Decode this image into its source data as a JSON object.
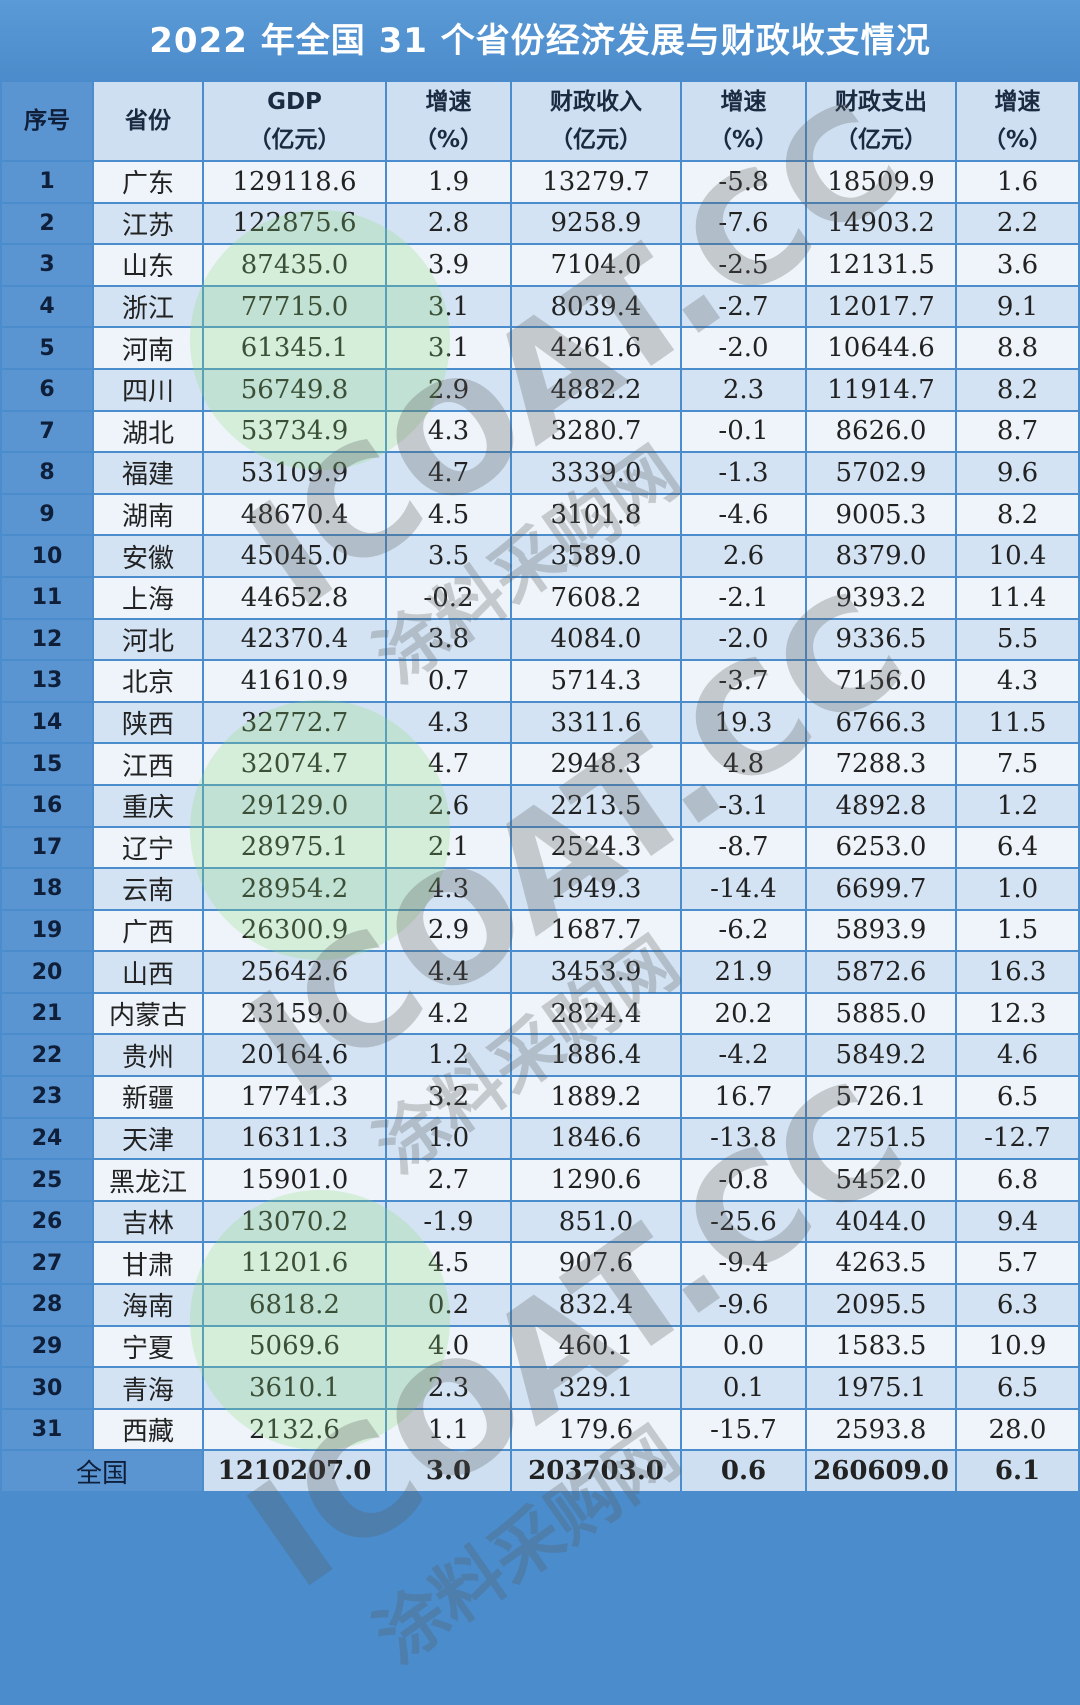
{
  "title": "2022 年全国 31 个省份经济发展与财政收支情况",
  "headers": {
    "idx": "序号",
    "province": "省份",
    "gdp": "GDP",
    "gdp_unit": "（亿元）",
    "gdp_growth": "增速",
    "pct": "（%）",
    "revenue": "财政收入",
    "revenue_unit": "（亿元）",
    "revenue_growth": "增速",
    "expenditure": "财政支出",
    "expenditure_unit": "（亿元）",
    "expenditure_growth": "增速"
  },
  "rows": [
    [
      "1",
      "广东",
      "129118.6",
      "1.9",
      "13279.7",
      "-5.8",
      "18509.9",
      "1.6"
    ],
    [
      "2",
      "江苏",
      "122875.6",
      "2.8",
      "9258.9",
      "-7.6",
      "14903.2",
      "2.2"
    ],
    [
      "3",
      "山东",
      "87435.0",
      "3.9",
      "7104.0",
      "-2.5",
      "12131.5",
      "3.6"
    ],
    [
      "4",
      "浙江",
      "77715.0",
      "3.1",
      "8039.4",
      "-2.7",
      "12017.7",
      "9.1"
    ],
    [
      "5",
      "河南",
      "61345.1",
      "3.1",
      "4261.6",
      "-2.0",
      "10644.6",
      "8.8"
    ],
    [
      "6",
      "四川",
      "56749.8",
      "2.9",
      "4882.2",
      "2.3",
      "11914.7",
      "8.2"
    ],
    [
      "7",
      "湖北",
      "53734.9",
      "4.3",
      "3280.7",
      "-0.1",
      "8626.0",
      "8.7"
    ],
    [
      "8",
      "福建",
      "53109.9",
      "4.7",
      "3339.0",
      "-1.3",
      "5702.9",
      "9.6"
    ],
    [
      "9",
      "湖南",
      "48670.4",
      "4.5",
      "3101.8",
      "-4.6",
      "9005.3",
      "8.2"
    ],
    [
      "10",
      "安徽",
      "45045.0",
      "3.5",
      "3589.0",
      "2.6",
      "8379.0",
      "10.4"
    ],
    [
      "11",
      "上海",
      "44652.8",
      "-0.2",
      "7608.2",
      "-2.1",
      "9393.2",
      "11.4"
    ],
    [
      "12",
      "河北",
      "42370.4",
      "3.8",
      "4084.0",
      "-2.0",
      "9336.5",
      "5.5"
    ],
    [
      "13",
      "北京",
      "41610.9",
      "0.7",
      "5714.3",
      "-3.7",
      "7156.0",
      "4.3"
    ],
    [
      "14",
      "陕西",
      "32772.7",
      "4.3",
      "3311.6",
      "19.3",
      "6766.3",
      "11.5"
    ],
    [
      "15",
      "江西",
      "32074.7",
      "4.7",
      "2948.3",
      "4.8",
      "7288.3",
      "7.5"
    ],
    [
      "16",
      "重庆",
      "29129.0",
      "2.6",
      "2213.5",
      "-3.1",
      "4892.8",
      "1.2"
    ],
    [
      "17",
      "辽宁",
      "28975.1",
      "2.1",
      "2524.3",
      "-8.7",
      "6253.0",
      "6.4"
    ],
    [
      "18",
      "云南",
      "28954.2",
      "4.3",
      "1949.3",
      "-14.4",
      "6699.7",
      "1.0"
    ],
    [
      "19",
      "广西",
      "26300.9",
      "2.9",
      "1687.7",
      "-6.2",
      "5893.9",
      "1.5"
    ],
    [
      "20",
      "山西",
      "25642.6",
      "4.4",
      "3453.9",
      "21.9",
      "5872.6",
      "16.3"
    ],
    [
      "21",
      "内蒙古",
      "23159.0",
      "4.2",
      "2824.4",
      "20.2",
      "5885.0",
      "12.3"
    ],
    [
      "22",
      "贵州",
      "20164.6",
      "1.2",
      "1886.4",
      "-4.2",
      "5849.2",
      "4.6"
    ],
    [
      "23",
      "新疆",
      "17741.3",
      "3.2",
      "1889.2",
      "16.7",
      "5726.1",
      "6.5"
    ],
    [
      "24",
      "天津",
      "16311.3",
      "1.0",
      "1846.6",
      "-13.8",
      "2751.5",
      "-12.7"
    ],
    [
      "25",
      "黑龙江",
      "15901.0",
      "2.7",
      "1290.6",
      "-0.8",
      "5452.0",
      "6.8"
    ],
    [
      "26",
      "吉林",
      "13070.2",
      "-1.9",
      "851.0",
      "-25.6",
      "4044.0",
      "9.4"
    ],
    [
      "27",
      "甘肃",
      "11201.6",
      "4.5",
      "907.6",
      "-9.4",
      "4263.5",
      "5.7"
    ],
    [
      "28",
      "海南",
      "6818.2",
      "0.2",
      "832.4",
      "-9.6",
      "2095.5",
      "6.3"
    ],
    [
      "29",
      "宁夏",
      "5069.6",
      "4.0",
      "460.1",
      "0.0",
      "1583.5",
      "10.9"
    ],
    [
      "30",
      "青海",
      "3610.1",
      "2.3",
      "329.1",
      "0.1",
      "1975.1",
      "6.5"
    ],
    [
      "31",
      "西藏",
      "2132.6",
      "1.1",
      "179.6",
      "-15.7",
      "2593.8",
      "28.0"
    ]
  ],
  "total": {
    "label": "全国",
    "gdp": "1210207.0",
    "gdp_growth": "3.0",
    "revenue": "203703.0",
    "revenue_growth": "0.6",
    "expenditure": "260609.0",
    "expenditure_growth": "6.1"
  },
  "watermark": {
    "brand": "ICOAT.CC",
    "cn": "涂料采购网"
  },
  "colors": {
    "title_bg": "#4b8bcb",
    "index_col": "#5b95d1",
    "row_light": "#eef4fa",
    "row_blue": "#d3e3f3"
  }
}
